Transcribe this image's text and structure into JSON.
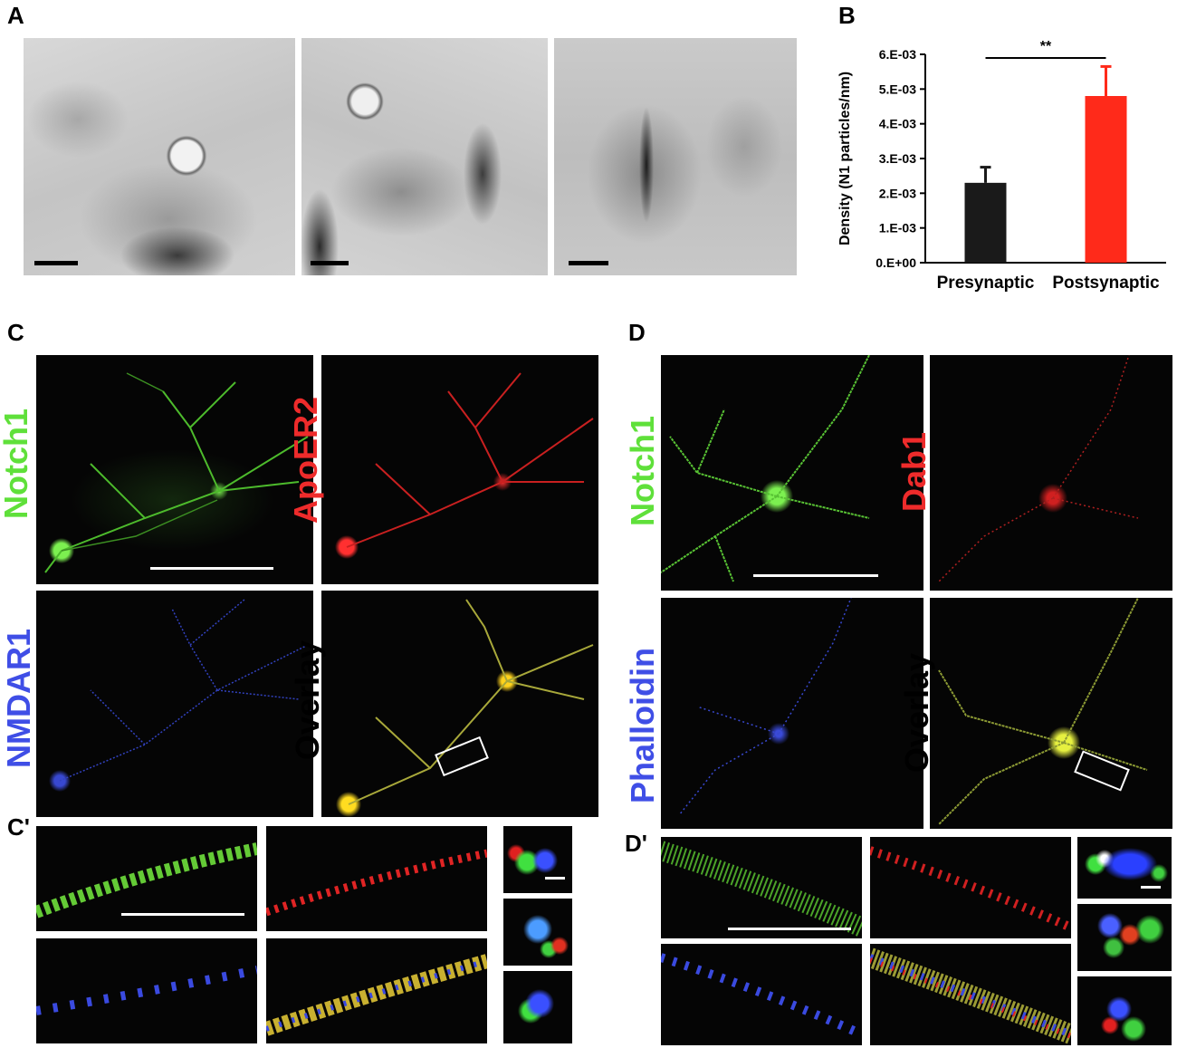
{
  "panels": {
    "a": "A",
    "b": "B",
    "c": "C",
    "c_prime": "C'",
    "d": "D",
    "d_prime": "D'"
  },
  "panel_c": {
    "labels": [
      "Notch1",
      "ApoER2",
      "NMDAR1",
      "Overlay"
    ],
    "colors": {
      "green": "#5fe03a",
      "red": "#ee2b2b",
      "blue": "#3f4ee6",
      "black": "#000000"
    }
  },
  "panel_d": {
    "labels": [
      "Notch1",
      "Dab1",
      "Phalloidin",
      "Overlay"
    ]
  },
  "chart_data": {
    "type": "bar",
    "categories": [
      "Presynaptic",
      "Postsynaptic"
    ],
    "values": [
      0.0023,
      0.0048
    ],
    "errors": [
      0.00045,
      0.00085
    ],
    "colors": [
      "#1a1a1a",
      "#ff2a1a"
    ],
    "ylabel": "Density (N1 particles/nm)",
    "ylim": [
      0,
      0.006
    ],
    "yticks": [
      0,
      0.001,
      0.002,
      0.003,
      0.004,
      0.005,
      0.006
    ],
    "ytick_labels": [
      "0.E+00",
      "1.E-03",
      "2.E-03",
      "3.E-03",
      "4.E-03",
      "5.E-03",
      "6.E-03"
    ],
    "significance": "**",
    "grid": false
  }
}
